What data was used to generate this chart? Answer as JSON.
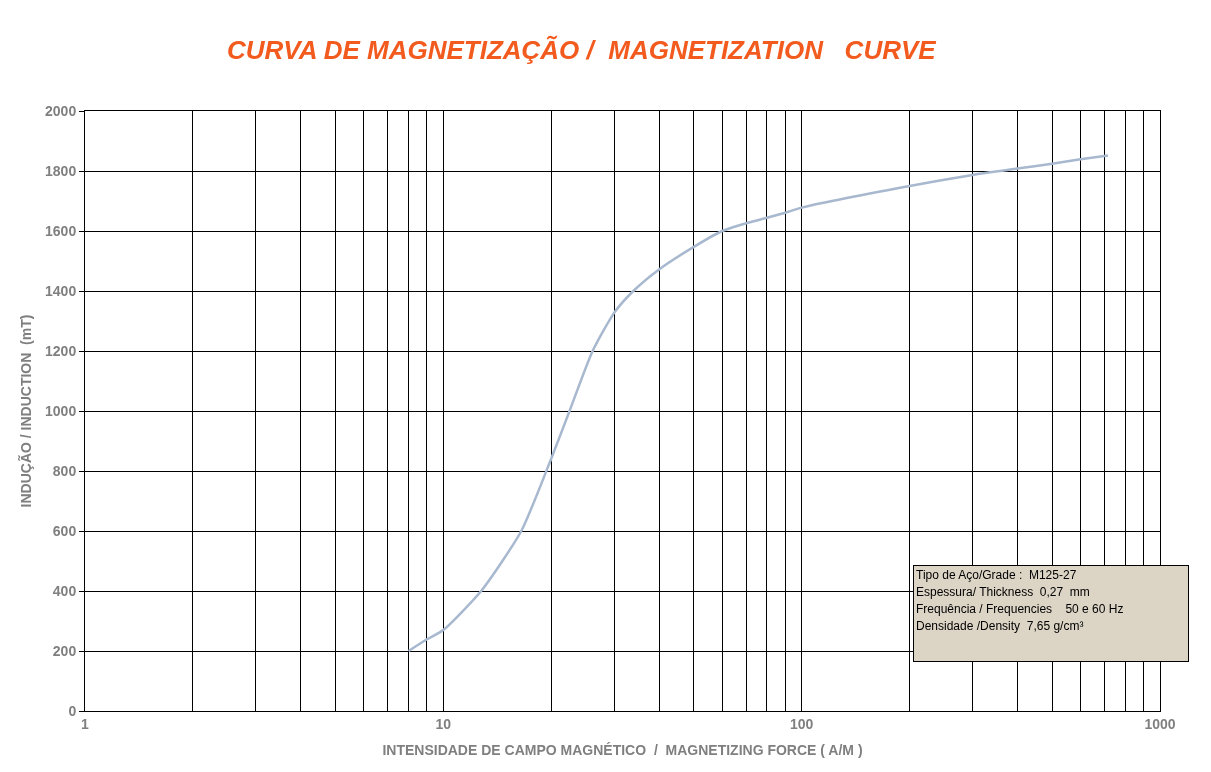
{
  "chart_data": {
    "type": "line",
    "title": "CURVA DE MAGNETIZAÇÃO /  MAGNETIZATION   CURVE",
    "xlabel": "INTENSIDADE DE CAMPO MAGNÉTICO  /  MAGNETIZING FORCE ( A/M )",
    "ylabel": "INDUÇÃO / INDUCTION  (mT)",
    "series": [
      {
        "color": "#a7b8cf",
        "x": [
          8,
          9,
          10,
          12.75,
          16.5,
          20,
          22.5,
          26.1,
          30,
          33.9,
          40,
          50,
          60,
          70,
          80,
          90,
          100,
          200,
          300,
          400,
          500,
          600,
          716
        ],
        "values": [
          200,
          239,
          270,
          400,
          600,
          841,
          1000,
          1200,
          1328,
          1400,
          1472,
          1547,
          1600,
          1626,
          1644,
          1661,
          1678,
          1750,
          1787,
          1808,
          1824,
          1839,
          1852
        ]
      }
    ],
    "xlim": [
      1,
      1000
    ],
    "xticks": [
      1,
      {
        "value": 2,
        "label": null
      },
      {
        "value": 3,
        "label": null
      },
      {
        "value": 4,
        "label": null
      },
      {
        "value": 5,
        "label": null
      },
      {
        "value": 6,
        "label": null
      },
      {
        "value": 7,
        "label": null
      },
      {
        "value": 8,
        "label": null
      },
      {
        "value": 9,
        "label": null
      },
      10,
      {
        "value": 20,
        "label": null
      },
      {
        "value": 30,
        "label": null
      },
      {
        "value": 40,
        "label": null
      },
      {
        "value": 50,
        "label": null
      },
      {
        "value": 60,
        "label": null
      },
      {
        "value": 70,
        "label": null
      },
      {
        "value": 80,
        "label": null
      },
      {
        "value": 90,
        "label": null
      },
      100,
      {
        "value": 200,
        "label": null
      },
      {
        "value": 300,
        "label": null
      },
      {
        "value": 400,
        "label": null
      },
      {
        "value": 500,
        "label": null
      },
      {
        "value": 600,
        "label": null
      },
      {
        "value": 700,
        "label": null
      },
      {
        "value": 800,
        "label": null
      },
      {
        "value": 900,
        "label": null
      },
      1000
    ],
    "ylim": [
      0,
      2000
    ],
    "yticks": [
      0,
      200,
      400,
      600,
      800,
      1000,
      1200,
      1400,
      1600,
      1800,
      2000
    ],
    "log": "x",
    "grid": true,
    "marker": "none",
    "line_style": "solid",
    "annotations": [
      "Tipo de Aço/Grade :  M125-27",
      "Espessura/ Thickness  0,27  mm",
      "Frequência / Frequencies    50 e 60 Hz",
      "Densidade /Density  7,65 g/cm³"
    ]
  }
}
